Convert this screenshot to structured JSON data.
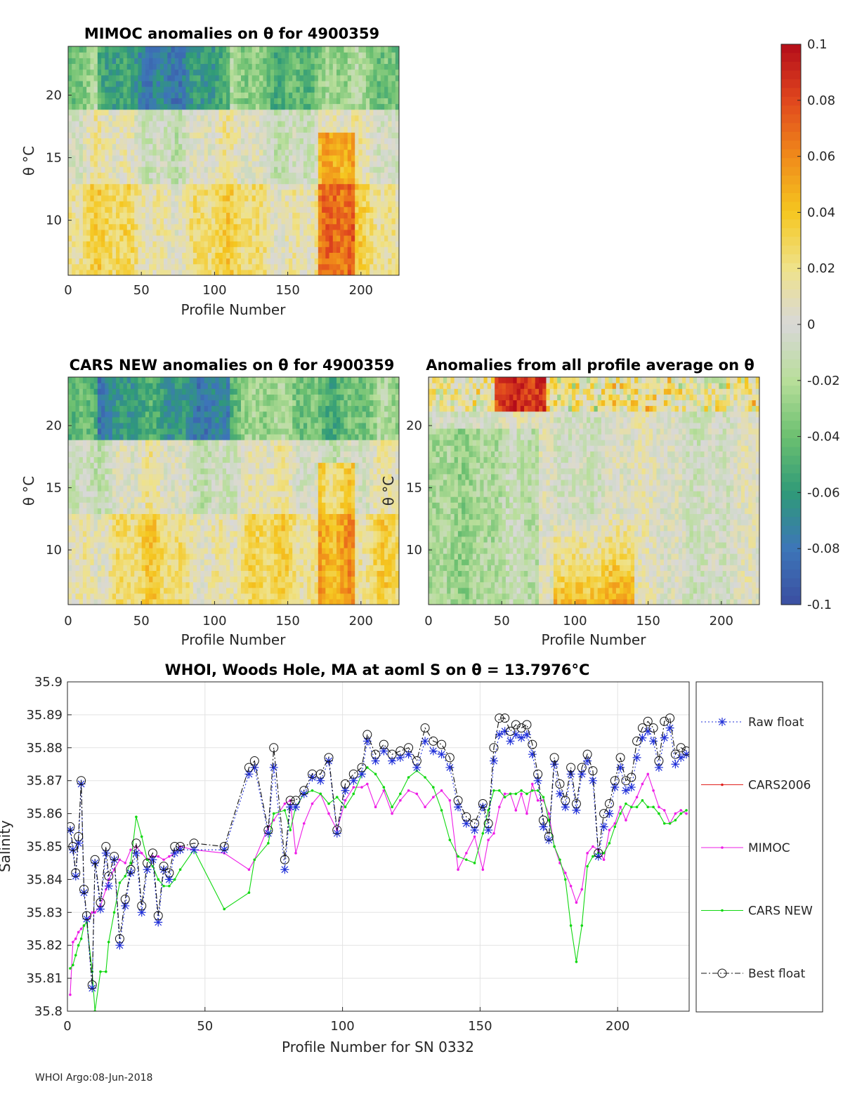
{
  "footer": "WHOI Argo:08-Jun-2018",
  "colorbar": {
    "ticks": [
      "0.1",
      "0.08",
      "0.06",
      "0.04",
      "0.02",
      "0",
      "-0.02",
      "-0.04",
      "-0.06",
      "-0.08",
      "-0.1"
    ],
    "range": [
      -0.1,
      0.1
    ],
    "colors": [
      "#3b4ea1",
      "#3d76b8",
      "#2f9a78",
      "#6cc070",
      "#b8de9a",
      "#d8d8d8",
      "#efe28a",
      "#f5c720",
      "#f08a1a",
      "#e0471e",
      "#b40c1a"
    ]
  },
  "panels": [
    {
      "id": "mimoc",
      "title": "MIMOC anomalies on θ  for 4900359",
      "xlabel": "Profile Number",
      "ylabel": "θ °C",
      "xticks": [
        "0",
        "50",
        "100",
        "150",
        "200"
      ],
      "yticks": [
        "10",
        "15",
        "20"
      ],
      "xlim": [
        0,
        226
      ],
      "ylim": [
        5.6,
        23.9
      ]
    },
    {
      "id": "cars",
      "title": "CARS NEW anomalies on θ for 4900359",
      "xlabel": "Profile Number",
      "ylabel": "θ °C",
      "xticks": [
        "0",
        "50",
        "100",
        "150",
        "200"
      ],
      "yticks": [
        "10",
        "15",
        "20"
      ],
      "xlim": [
        0,
        226
      ],
      "ylim": [
        5.6,
        23.9
      ]
    },
    {
      "id": "avg",
      "title": "Anomalies from all profile average on θ",
      "xlabel": "Profile Number",
      "ylabel": "θ °C",
      "xticks": [
        "0",
        "50",
        "100",
        "150",
        "200"
      ],
      "yticks": [
        "10",
        "15",
        "20"
      ],
      "xlim": [
        0,
        226
      ],
      "ylim": [
        5.6,
        23.9
      ]
    }
  ],
  "chart_data": {
    "type": "line",
    "title": "WHOI, Woods Hole, MA at aoml S on θ = 13.7976°C",
    "xlabel": "Profile Number for SN 0332",
    "ylabel": "Salinity",
    "xlim": [
      0,
      226
    ],
    "ylim": [
      35.8,
      35.9
    ],
    "xticks": [
      "0",
      "50",
      "100",
      "150",
      "200"
    ],
    "yticks": [
      "35.8",
      "35.81",
      "35.82",
      "35.83",
      "35.84",
      "35.85",
      "35.86",
      "35.87",
      "35.88",
      "35.89",
      "35.9"
    ],
    "legend": [
      "Raw float",
      "CARS2006",
      "MIMOC",
      "CARS NEW",
      "Best float"
    ],
    "series": [
      {
        "name": "Raw float",
        "color": "#1f2fd8",
        "marker": "star",
        "x": [
          1,
          2,
          3,
          4,
          5,
          6,
          7,
          9,
          10,
          12,
          14,
          15,
          17,
          19,
          21,
          23,
          25,
          27,
          29,
          31,
          33,
          35,
          37,
          39,
          41,
          46,
          57,
          66,
          68,
          73,
          75,
          79,
          81,
          83,
          86,
          89,
          92,
          95,
          98,
          101,
          104,
          107,
          109,
          112,
          115,
          118,
          121,
          124,
          127,
          130,
          133,
          136,
          139,
          142,
          145,
          148,
          151,
          153,
          155,
          157,
          159,
          161,
          163,
          165,
          167,
          169,
          171,
          173,
          175,
          177,
          179,
          181,
          183,
          185,
          187,
          189,
          191,
          193,
          195,
          197,
          199,
          201,
          203,
          205,
          207,
          209,
          211,
          213,
          215,
          217,
          219,
          221,
          223,
          225
        ],
        "values": [
          35.855,
          35.849,
          35.841,
          35.851,
          35.869,
          35.836,
          35.828,
          35.807,
          35.845,
          35.831,
          35.848,
          35.838,
          35.846,
          35.82,
          35.832,
          35.842,
          35.848,
          35.83,
          35.843,
          35.846,
          35.827,
          35.843,
          35.84,
          35.848,
          35.849,
          35.849,
          35.849,
          35.872,
          35.874,
          35.854,
          35.874,
          35.843,
          35.862,
          35.862,
          35.866,
          35.871,
          35.87,
          35.876,
          35.854,
          35.867,
          35.87,
          35.872,
          35.882,
          35.876,
          35.879,
          35.876,
          35.877,
          35.878,
          35.874,
          35.882,
          35.879,
          35.878,
          35.874,
          35.862,
          35.857,
          35.855,
          35.862,
          35.855,
          35.876,
          35.884,
          35.885,
          35.882,
          35.884,
          35.883,
          35.884,
          35.878,
          35.87,
          35.856,
          35.852,
          35.875,
          35.866,
          35.862,
          35.872,
          35.861,
          35.872,
          35.876,
          35.87,
          35.847,
          35.856,
          35.86,
          35.868,
          35.874,
          35.867,
          35.868,
          35.877,
          35.883,
          35.885,
          35.882,
          35.874,
          35.883,
          35.886,
          35.875,
          35.877,
          35.878
        ],
        "dash": "2,3"
      },
      {
        "name": "CARS2006",
        "color": "#e0201c",
        "marker": "dot",
        "x": [],
        "values": [],
        "dash": ""
      },
      {
        "name": "MIMOC",
        "color": "#ee1ee6",
        "marker": "dot",
        "x": [
          1,
          2,
          3,
          4,
          5,
          6,
          7,
          9,
          10,
          12,
          14,
          15,
          17,
          19,
          21,
          23,
          25,
          27,
          29,
          31,
          33,
          35,
          37,
          39,
          41,
          46,
          57,
          66,
          68,
          73,
          75,
          79,
          81,
          83,
          86,
          89,
          92,
          95,
          98,
          101,
          104,
          107,
          109,
          112,
          115,
          118,
          121,
          124,
          127,
          130,
          133,
          136,
          139,
          142,
          145,
          148,
          151,
          153,
          155,
          157,
          159,
          161,
          163,
          165,
          167,
          169,
          171,
          173,
          175,
          177,
          179,
          181,
          183,
          185,
          187,
          189,
          191,
          193,
          195,
          197,
          199,
          201,
          203,
          205,
          207,
          209,
          211,
          213,
          215,
          217,
          219,
          221,
          223,
          225
        ],
        "values": [
          35.805,
          35.821,
          35.822,
          35.824,
          35.825,
          35.826,
          35.827,
          35.83,
          35.83,
          35.832,
          35.837,
          35.84,
          35.843,
          35.846,
          35.845,
          35.849,
          35.85,
          35.848,
          35.846,
          35.847,
          35.847,
          35.846,
          35.847,
          35.848,
          35.85,
          35.849,
          35.848,
          35.843,
          35.846,
          35.856,
          35.858,
          35.863,
          35.864,
          35.848,
          35.857,
          35.863,
          35.866,
          35.86,
          35.855,
          35.864,
          35.868,
          35.868,
          35.869,
          35.862,
          35.867,
          35.86,
          35.864,
          35.867,
          35.866,
          35.862,
          35.865,
          35.867,
          35.864,
          35.843,
          35.848,
          35.853,
          35.843,
          35.852,
          35.854,
          35.862,
          35.866,
          35.866,
          35.861,
          35.866,
          35.86,
          35.869,
          35.864,
          35.864,
          35.86,
          35.85,
          35.845,
          35.842,
          35.838,
          35.833,
          35.837,
          35.848,
          35.85,
          35.849,
          35.846,
          35.855,
          35.857,
          35.862,
          35.858,
          35.862,
          35.865,
          35.869,
          35.872,
          35.867,
          35.862,
          35.861,
          35.857,
          35.86,
          35.861,
          35.86
        ],
        "dash": ""
      },
      {
        "name": "CARS NEW",
        "color": "#10d810",
        "marker": "dot",
        "x": [
          1,
          2,
          3,
          4,
          5,
          6,
          7,
          9,
          10,
          12,
          14,
          15,
          17,
          19,
          21,
          23,
          25,
          27,
          29,
          31,
          33,
          35,
          37,
          39,
          41,
          46,
          57,
          66,
          68,
          73,
          75,
          79,
          81,
          83,
          86,
          89,
          92,
          95,
          98,
          101,
          104,
          107,
          109,
          112,
          115,
          118,
          121,
          124,
          127,
          130,
          133,
          136,
          139,
          142,
          145,
          148,
          151,
          153,
          155,
          157,
          159,
          161,
          163,
          165,
          167,
          169,
          171,
          173,
          175,
          177,
          179,
          181,
          183,
          185,
          187,
          189,
          191,
          193,
          195,
          197,
          199,
          201,
          203,
          205,
          207,
          209,
          211,
          213,
          215,
          217,
          219,
          221,
          223,
          225
        ],
        "values": [
          35.813,
          35.814,
          35.817,
          35.82,
          35.822,
          35.826,
          35.827,
          35.812,
          35.8,
          35.812,
          35.812,
          35.821,
          35.83,
          35.839,
          35.841,
          35.845,
          35.859,
          35.853,
          35.846,
          35.844,
          35.84,
          35.838,
          35.838,
          35.84,
          35.843,
          35.849,
          35.831,
          35.836,
          35.846,
          35.851,
          35.86,
          35.861,
          35.855,
          35.862,
          35.866,
          35.867,
          35.866,
          35.863,
          35.865,
          35.862,
          35.866,
          35.872,
          35.874,
          35.872,
          35.868,
          35.862,
          35.866,
          35.871,
          35.873,
          35.871,
          35.868,
          35.861,
          35.852,
          35.847,
          35.846,
          35.845,
          35.854,
          35.861,
          35.867,
          35.867,
          35.865,
          35.866,
          35.866,
          35.867,
          35.866,
          35.867,
          35.867,
          35.865,
          35.858,
          35.85,
          35.846,
          35.84,
          35.826,
          35.815,
          35.826,
          35.844,
          35.847,
          35.848,
          35.848,
          35.851,
          35.856,
          35.86,
          35.863,
          35.862,
          35.862,
          35.864,
          35.862,
          35.862,
          35.86,
          35.857,
          35.857,
          35.858,
          35.86,
          35.861
        ],
        "dash": ""
      },
      {
        "name": "Best float",
        "color": "#111111",
        "marker": "circle",
        "x": [
          1,
          2,
          3,
          4,
          5,
          6,
          7,
          9,
          10,
          12,
          14,
          15,
          17,
          19,
          21,
          23,
          25,
          27,
          29,
          31,
          33,
          35,
          37,
          39,
          41,
          46,
          57,
          66,
          68,
          73,
          75,
          79,
          81,
          83,
          86,
          89,
          92,
          95,
          98,
          101,
          104,
          107,
          109,
          112,
          115,
          118,
          121,
          124,
          127,
          130,
          133,
          136,
          139,
          142,
          145,
          148,
          151,
          153,
          155,
          157,
          159,
          161,
          163,
          165,
          167,
          169,
          171,
          173,
          175,
          177,
          179,
          181,
          183,
          185,
          187,
          189,
          191,
          193,
          195,
          197,
          199,
          201,
          203,
          205,
          207,
          209,
          211,
          213,
          215,
          217,
          219,
          221,
          223,
          225
        ],
        "values": [
          35.856,
          35.85,
          35.842,
          35.853,
          35.87,
          35.837,
          35.829,
          35.808,
          35.846,
          35.833,
          35.85,
          35.841,
          35.847,
          35.822,
          35.834,
          35.843,
          35.851,
          35.832,
          35.845,
          35.848,
          35.829,
          35.844,
          35.842,
          35.85,
          35.85,
          35.851,
          35.85,
          35.874,
          35.876,
          35.855,
          35.88,
          35.846,
          35.864,
          35.864,
          35.867,
          35.872,
          35.872,
          35.877,
          35.855,
          35.869,
          35.872,
          35.874,
          35.884,
          35.878,
          35.881,
          35.878,
          35.879,
          35.88,
          35.876,
          35.886,
          35.882,
          35.881,
          35.877,
          35.864,
          35.859,
          35.857,
          35.863,
          35.857,
          35.88,
          35.889,
          35.889,
          35.885,
          35.887,
          35.886,
          35.887,
          35.881,
          35.872,
          35.858,
          35.853,
          35.877,
          35.869,
          35.864,
          35.874,
          35.863,
          35.874,
          35.878,
          35.873,
          35.848,
          35.86,
          35.863,
          35.87,
          35.877,
          35.87,
          35.871,
          35.882,
          35.886,
          35.888,
          35.886,
          35.876,
          35.888,
          35.889,
          35.878,
          35.88,
          35.879
        ],
        "dash": "8,3,2,3"
      }
    ]
  }
}
